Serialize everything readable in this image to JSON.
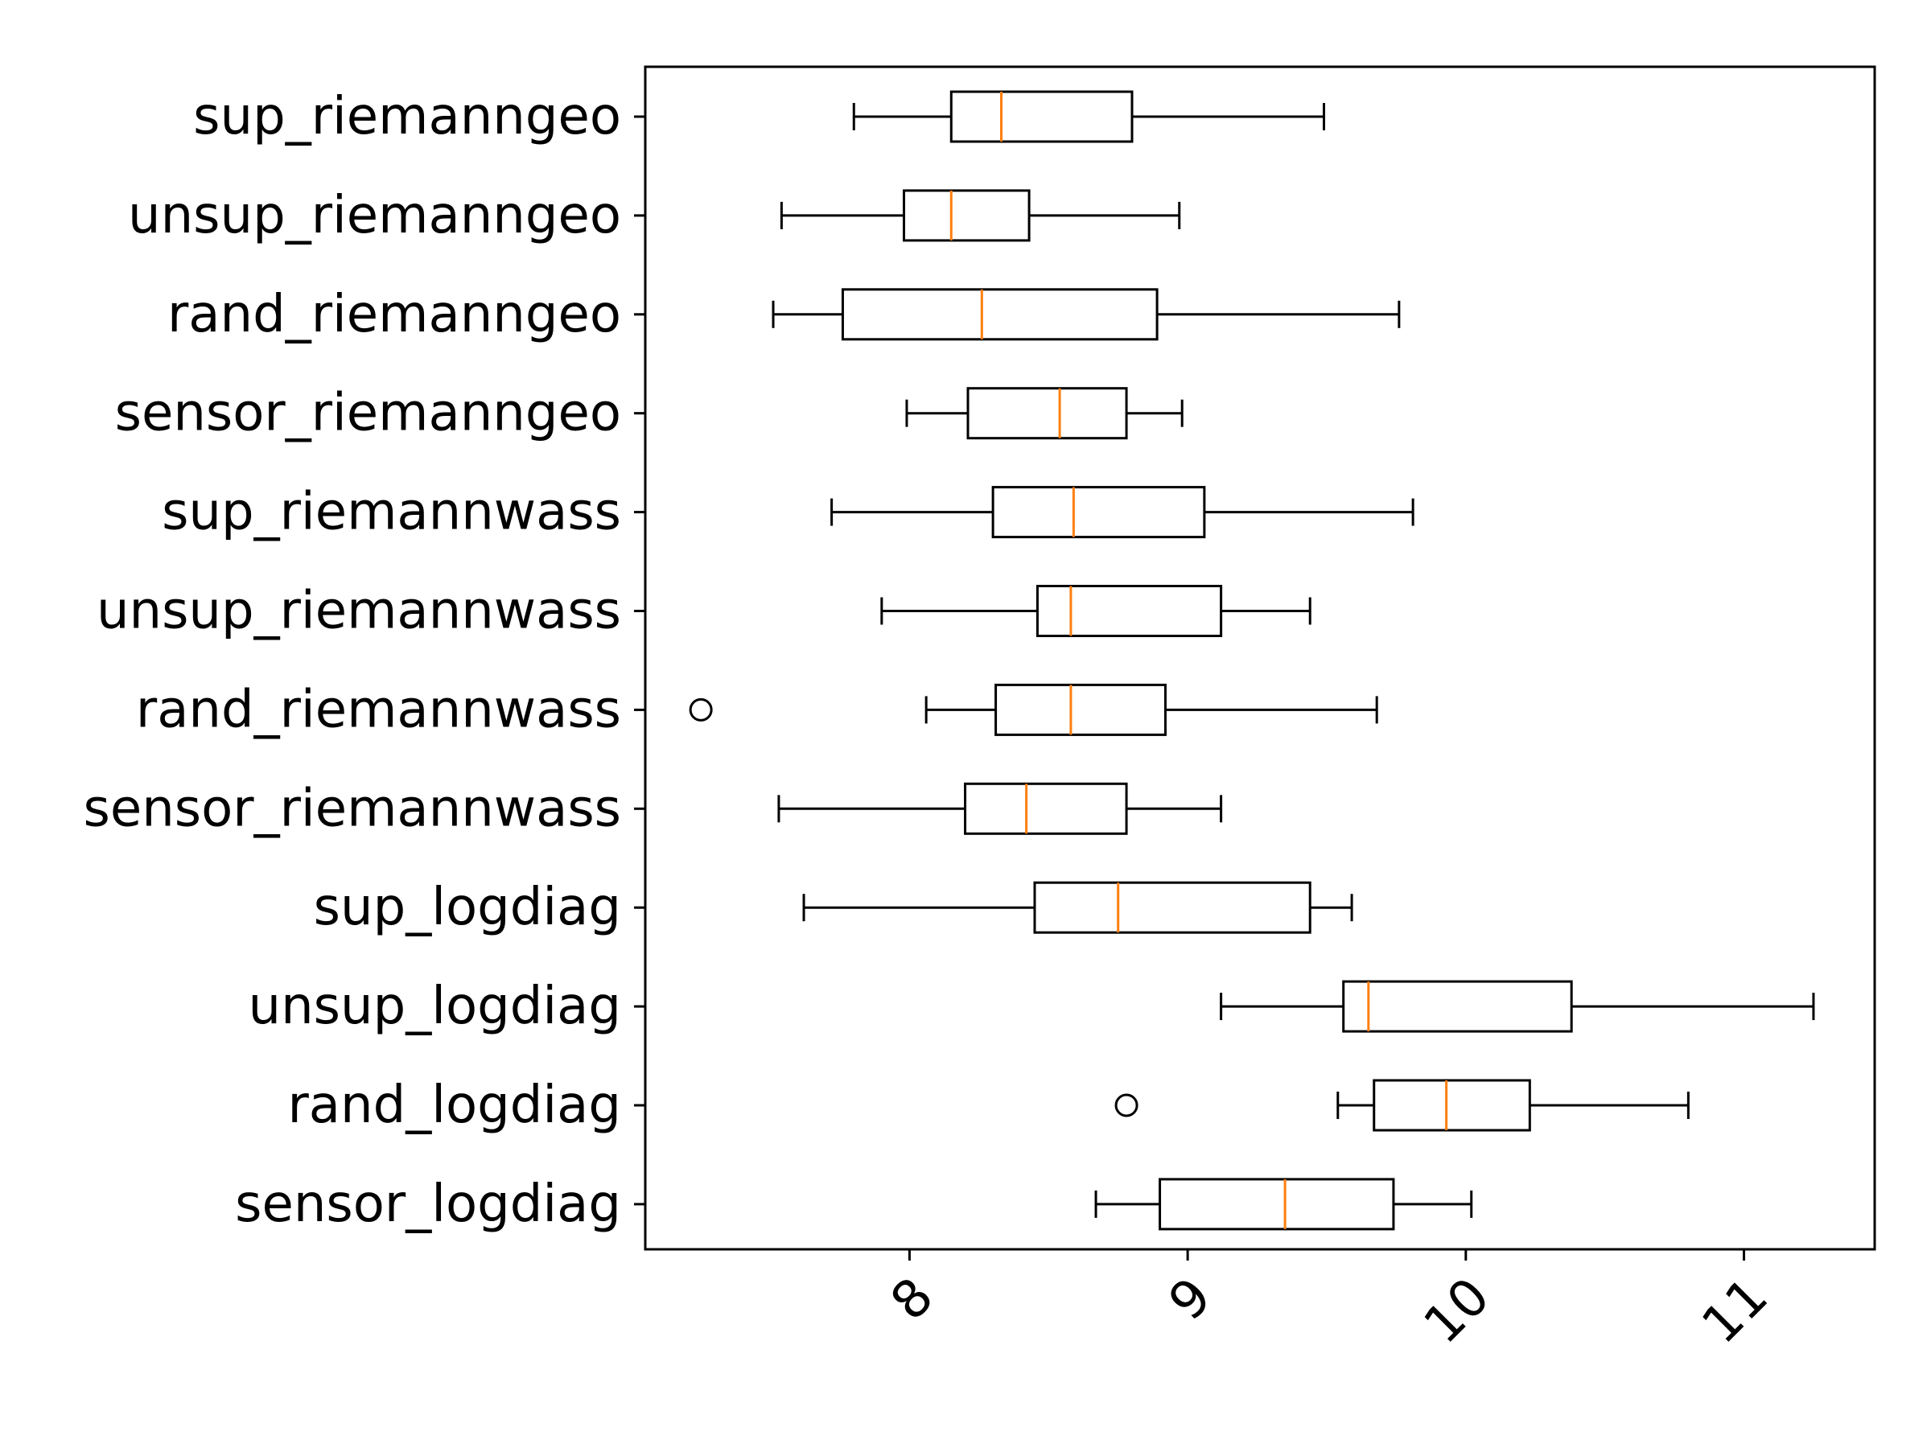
{
  "chart_data": {
    "type": "box",
    "orientation": "horizontal",
    "title": "",
    "xlabel": "",
    "ylabel": "",
    "xlim": [
      7.05,
      11.47
    ],
    "x_ticks": [
      8,
      9,
      10,
      11
    ],
    "x_tick_labels": [
      "8",
      "9",
      "10",
      "11"
    ],
    "x_tick_rotation_deg": 45,
    "grid": false,
    "colors": {
      "box": "#000000",
      "median": "#ff7f0e",
      "background": "#ffffff"
    },
    "categories": [
      "sup_riemanngeo",
      "unsup_riemanngeo",
      "rand_riemanngeo",
      "sensor_riemanngeo",
      "sup_riemannwass",
      "unsup_riemannwass",
      "rand_riemannwass",
      "sensor_riemannwass",
      "sup_logdiag",
      "unsup_logdiag",
      "rand_logdiag",
      "sensor_logdiag"
    ],
    "boxes": [
      {
        "name": "sup_riemanngeo",
        "whisker_low": 7.8,
        "q1": 8.15,
        "median": 8.33,
        "q3": 8.8,
        "whisker_high": 9.49,
        "outliers": []
      },
      {
        "name": "unsup_riemanngeo",
        "whisker_low": 7.54,
        "q1": 7.98,
        "median": 8.15,
        "q3": 8.43,
        "whisker_high": 8.97,
        "outliers": []
      },
      {
        "name": "rand_riemanngeo",
        "whisker_low": 7.51,
        "q1": 7.76,
        "median": 8.26,
        "q3": 8.89,
        "whisker_high": 9.76,
        "outliers": []
      },
      {
        "name": "sensor_riemanngeo",
        "whisker_low": 7.99,
        "q1": 8.21,
        "median": 8.54,
        "q3": 8.78,
        "whisker_high": 8.98,
        "outliers": []
      },
      {
        "name": "sup_riemannwass",
        "whisker_low": 7.72,
        "q1": 8.3,
        "median": 8.59,
        "q3": 9.06,
        "whisker_high": 9.81,
        "outliers": []
      },
      {
        "name": "unsup_riemannwass",
        "whisker_low": 7.9,
        "q1": 8.46,
        "median": 8.58,
        "q3": 9.12,
        "whisker_high": 9.44,
        "outliers": []
      },
      {
        "name": "rand_riemannwass",
        "whisker_low": 8.06,
        "q1": 8.31,
        "median": 8.58,
        "q3": 8.92,
        "whisker_high": 9.68,
        "outliers": [
          7.25
        ]
      },
      {
        "name": "sensor_riemannwass",
        "whisker_low": 7.53,
        "q1": 8.2,
        "median": 8.42,
        "q3": 8.78,
        "whisker_high": 9.12,
        "outliers": []
      },
      {
        "name": "sup_logdiag",
        "whisker_low": 7.62,
        "q1": 8.45,
        "median": 8.75,
        "q3": 9.44,
        "whisker_high": 9.59,
        "outliers": []
      },
      {
        "name": "unsup_logdiag",
        "whisker_low": 9.12,
        "q1": 9.56,
        "median": 9.65,
        "q3": 10.38,
        "whisker_high": 11.25,
        "outliers": []
      },
      {
        "name": "rand_logdiag",
        "whisker_low": 9.54,
        "q1": 9.67,
        "median": 9.93,
        "q3": 10.23,
        "whisker_high": 10.8,
        "outliers": [
          8.78
        ]
      },
      {
        "name": "sensor_logdiag",
        "whisker_low": 8.67,
        "q1": 8.9,
        "median": 9.35,
        "q3": 9.74,
        "whisker_high": 10.02,
        "outliers": []
      }
    ]
  }
}
